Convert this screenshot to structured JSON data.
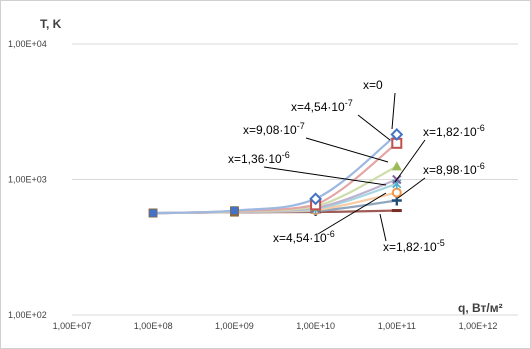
{
  "chart_data": {
    "type": "line",
    "x_scale": "log",
    "y_scale": "log",
    "xlim": [
      10000000.0,
      1000000000000.0
    ],
    "ylim": [
      100,
      10000
    ],
    "xlabel": "q, Вт/м²",
    "ylabel": "T, K",
    "x_tick_labels": [
      "1,00E+07",
      "1,00E+08",
      "1,00E+09",
      "1,00E+10",
      "1,00E+11",
      "1,00E+12"
    ],
    "y_tick_labels": [
      "1,00E+02",
      "1,00E+03",
      "1,00E+04"
    ],
    "grid": "horizontal",
    "x": [
      100000000.0,
      1000000000.0,
      10000000000.0,
      100000000000.0
    ],
    "series": [
      {
        "name": "x=0",
        "values": [
          565,
          590,
          720,
          2150
        ],
        "color": "#4472C4",
        "line_color": "#9DB8E1",
        "marker": "diamond"
      },
      {
        "name": "x=4,54·10⁻⁷",
        "values": [
          565,
          585,
          650,
          1850
        ],
        "color": "#C0504D",
        "line_color": "#E3A6A4",
        "marker": "square"
      },
      {
        "name": "x=9,08·10⁻⁷",
        "values": [
          565,
          582,
          630,
          1250
        ],
        "color": "#9BBB59",
        "line_color": "#CDDDAC",
        "marker": "triangle"
      },
      {
        "name": "x=1,36·10⁻⁶",
        "values": [
          565,
          580,
          615,
          1000
        ],
        "color": "#8064A2",
        "line_color": "#BFB1D0",
        "marker": "x"
      },
      {
        "name": "x=1,82·10⁻⁶",
        "values": [
          565,
          578,
          605,
          930
        ],
        "color": "#4BACC6",
        "line_color": "#A5D5E2",
        "marker": "star"
      },
      {
        "name": "x=4,54·10⁻⁶",
        "values": [
          565,
          576,
          595,
          800
        ],
        "color": "#F79646",
        "line_color": "#FBCBA2",
        "marker": "circle"
      },
      {
        "name": "x=8,98·10⁻⁶",
        "values": [
          565,
          575,
          585,
          700
        ],
        "color": "#1F4E79",
        "line_color": "#8FA6BC",
        "marker": "plus"
      },
      {
        "name": "x=1,82·10⁻⁵",
        "values": [
          565,
          573,
          575,
          590
        ],
        "color": "#7B2B25",
        "line_color": "#9E5A55",
        "marker": "dash"
      }
    ],
    "annotations": [
      {
        "text": "x=0",
        "base": "x=0",
        "sup": ""
      },
      {
        "text": "x=4,54·10-7",
        "base": "x=4,54·10",
        "sup": "-7"
      },
      {
        "text": "x=9,08·10-7",
        "base": "x=9,08·10",
        "sup": "-7"
      },
      {
        "text": "x=1,36·10-6",
        "base": "x=1,36·10",
        "sup": "-6"
      },
      {
        "text": "x=1,82·10-6",
        "base": "x=1,82·10",
        "sup": "-6"
      },
      {
        "text": "x=8,98·10-6",
        "base": "x=8,98·10",
        "sup": "-6"
      },
      {
        "text": "x=4,54·10-6",
        "base": "x=4,54·10",
        "sup": "-6"
      },
      {
        "text": "x=1,82·10-5",
        "base": "x=1,82·10",
        "sup": "-5"
      }
    ]
  }
}
